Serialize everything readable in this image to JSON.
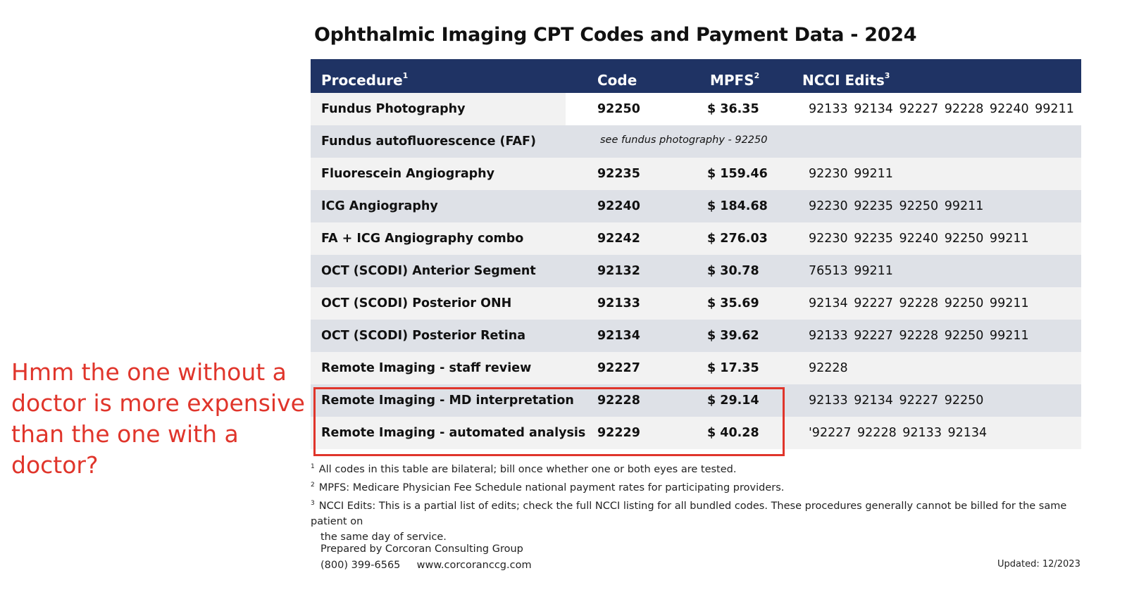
{
  "comment": "Hmm the one without a doctor is more expensive than the one with a doctor?",
  "title": "Ophthalmic Imaging CPT Codes and Payment Data - 2024",
  "headers": {
    "procedure": "Procedure",
    "procedure_sup": "1",
    "code": "Code",
    "mpfs": "MPFS",
    "mpfs_sup": "2",
    "ncci": "NCCI Edits",
    "ncci_sup": "3"
  },
  "rows": [
    {
      "procedure": "Fundus Photography",
      "code": "92250",
      "mpfs": "$ 36.35",
      "ncci": "92133 92134 92227 92228 92240 99211"
    },
    {
      "procedure": "Fundus autofluorescence (FAF)",
      "note": "see fundus photography - 92250"
    },
    {
      "procedure": "Fluorescein Angiography",
      "code": "92235",
      "mpfs": "$ 159.46",
      "ncci": "92230 99211"
    },
    {
      "procedure": "ICG Angiography",
      "code": "92240",
      "mpfs": "$ 184.68",
      "ncci": "92230 92235 92250 99211"
    },
    {
      "procedure": "FA + ICG Angiography combo",
      "code": "92242",
      "mpfs": "$ 276.03",
      "ncci": "92230 92235 92240 92250 99211"
    },
    {
      "procedure": "OCT (SCODI) Anterior Segment",
      "code": "92132",
      "mpfs": "$ 30.78",
      "ncci": "76513 99211"
    },
    {
      "procedure": "OCT (SCODI) Posterior ONH",
      "code": "92133",
      "mpfs": "$ 35.69",
      "ncci": "92134 92227 92228 92250 99211"
    },
    {
      "procedure": "OCT (SCODI) Posterior Retina",
      "code": "92134",
      "mpfs": "$ 39.62",
      "ncci": "92133 92227 92228 92250 99211"
    },
    {
      "procedure": "Remote Imaging - staff review",
      "code": "92227",
      "mpfs": "$ 17.35",
      "ncci": "92228"
    },
    {
      "procedure": "Remote Imaging - MD interpretation",
      "code": "92228",
      "mpfs": "$ 29.14",
      "ncci": "92133 92134 92227 92250"
    },
    {
      "procedure": "Remote Imaging - automated analysis",
      "code": "92229",
      "mpfs": "$ 40.28",
      "ncci": "'92227 92228 92133 92134"
    }
  ],
  "footnotes": [
    {
      "num": "1",
      "text": "All codes in this table are bilateral; bill once whether one or both eyes are tested."
    },
    {
      "num": "2",
      "text": "MPFS:  Medicare Physician Fee Schedule national payment rates for participating providers."
    },
    {
      "num": "3",
      "text": "NCCI Edits:  This is a partial list of edits; check the full NCCI listing for all bundled codes.  These procedures generally cannot be billed for the same patient on",
      "text2": "the same day of service."
    }
  ],
  "prepared_by": "Prepared by Corcoran Consulting Group",
  "phone": "(800) 399-6565",
  "website": "www.corcoranccg.com",
  "updated": "Updated:  12/2023",
  "colors": {
    "header_bg": "#1f3364",
    "row_light": "#f2f2f2",
    "row_dark": "#dee1e7",
    "annotation": "#e0352b"
  }
}
